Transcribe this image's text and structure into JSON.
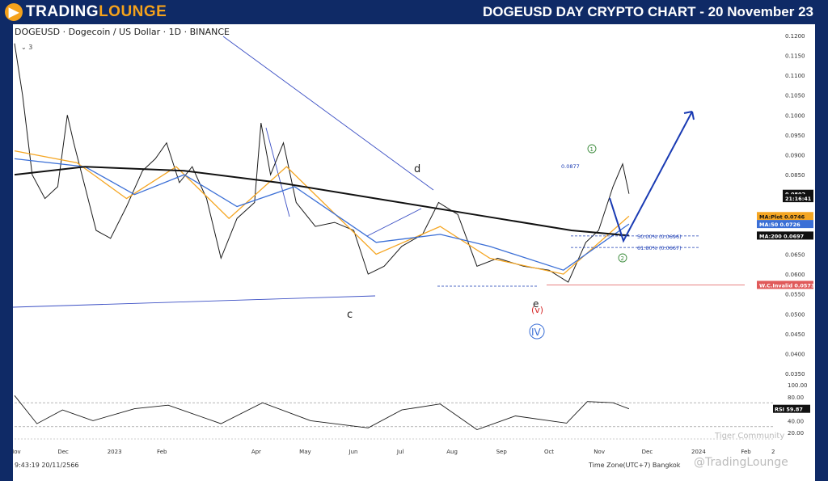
{
  "header": {
    "logo_part1": "TRADING",
    "logo_part2": "LOUNGE",
    "title": "DOGEUSD DAY CRYPTO CHART - 20 November 23"
  },
  "colors": {
    "header_bg": "#0f2a66",
    "brand_orange": "#f5a21b",
    "price": "#1b1b1b",
    "ma200": "#111111",
    "ma50": "#3b6fd6",
    "ma_plot": "#f5a623",
    "trendline": "#3b4fc4",
    "wave_arrow": "#1a3bb3",
    "invalidation": "#e05a5a",
    "wave_green": "#3a8a3a",
    "wave_red": "#d62b2b"
  },
  "chart_data": {
    "type": "line",
    "title": "DOGEUSD · Dogecoin / US Dollar · 1D · BINANCE",
    "indicator_count": "3",
    "xlabel": "",
    "ylabel": "",
    "x_ticks": [
      "Nov",
      "Dec",
      "2023",
      "Feb",
      "Apr",
      "May",
      "Jun",
      "Jul",
      "Aug",
      "Sep",
      "Oct",
      "Nov",
      "Dec",
      "2024",
      "Feb",
      "2"
    ],
    "y_ticks": [
      "0.1200",
      "0.1150",
      "0.1100",
      "0.1050",
      "0.1000",
      "0.0950",
      "0.0900",
      "0.0850",
      "0.0800",
      "0.0750",
      "0.0700",
      "0.0650",
      "0.0600",
      "0.0550",
      "0.0500",
      "0.0450",
      "0.0400",
      "0.0350"
    ],
    "ylim": [
      0.033,
      0.122
    ],
    "price_series": [
      {
        "d": "2022-11-01",
        "v": 0.118
      },
      {
        "d": "2022-11-06",
        "v": 0.105
      },
      {
        "d": "2022-11-12",
        "v": 0.085
      },
      {
        "d": "2022-11-20",
        "v": 0.079
      },
      {
        "d": "2022-11-28",
        "v": 0.082
      },
      {
        "d": "2022-12-04",
        "v": 0.1
      },
      {
        "d": "2022-12-08",
        "v": 0.093
      },
      {
        "d": "2022-12-15",
        "v": 0.082
      },
      {
        "d": "2022-12-22",
        "v": 0.071
      },
      {
        "d": "2022-12-31",
        "v": 0.069
      },
      {
        "d": "2023-01-10",
        "v": 0.077
      },
      {
        "d": "2023-01-20",
        "v": 0.086
      },
      {
        "d": "2023-01-28",
        "v": 0.089
      },
      {
        "d": "2023-02-04",
        "v": 0.093
      },
      {
        "d": "2023-02-12",
        "v": 0.083
      },
      {
        "d": "2023-02-20",
        "v": 0.087
      },
      {
        "d": "2023-03-01",
        "v": 0.079
      },
      {
        "d": "2023-03-10",
        "v": 0.064
      },
      {
        "d": "2023-03-20",
        "v": 0.074
      },
      {
        "d": "2023-03-31",
        "v": 0.078
      },
      {
        "d": "2023-04-04",
        "v": 0.098
      },
      {
        "d": "2023-04-10",
        "v": 0.085
      },
      {
        "d": "2023-04-18",
        "v": 0.093
      },
      {
        "d": "2023-04-26",
        "v": 0.078
      },
      {
        "d": "2023-05-08",
        "v": 0.072
      },
      {
        "d": "2023-05-20",
        "v": 0.073
      },
      {
        "d": "2023-06-01",
        "v": 0.071
      },
      {
        "d": "2023-06-10",
        "v": 0.06
      },
      {
        "d": "2023-06-20",
        "v": 0.062
      },
      {
        "d": "2023-07-01",
        "v": 0.067
      },
      {
        "d": "2023-07-14",
        "v": 0.07
      },
      {
        "d": "2023-07-24",
        "v": 0.078
      },
      {
        "d": "2023-08-05",
        "v": 0.075
      },
      {
        "d": "2023-08-17",
        "v": 0.062
      },
      {
        "d": "2023-08-30",
        "v": 0.064
      },
      {
        "d": "2023-09-15",
        "v": 0.062
      },
      {
        "d": "2023-10-01",
        "v": 0.061
      },
      {
        "d": "2023-10-13",
        "v": 0.058
      },
      {
        "d": "2023-10-24",
        "v": 0.068
      },
      {
        "d": "2023-11-01",
        "v": 0.071
      },
      {
        "d": "2023-11-10",
        "v": 0.082
      },
      {
        "d": "2023-11-16",
        "v": 0.0877
      },
      {
        "d": "2023-11-20",
        "v": 0.0802
      }
    ],
    "ma200_series": [
      {
        "d": "2022-11-01",
        "v": 0.085
      },
      {
        "d": "2022-12-15",
        "v": 0.087
      },
      {
        "d": "2023-02-15",
        "v": 0.086
      },
      {
        "d": "2023-04-15",
        "v": 0.083
      },
      {
        "d": "2023-06-15",
        "v": 0.079
      },
      {
        "d": "2023-08-15",
        "v": 0.075
      },
      {
        "d": "2023-10-15",
        "v": 0.071
      },
      {
        "d": "2023-11-20",
        "v": 0.0697
      }
    ],
    "ma50_series": [
      {
        "d": "2022-11-01",
        "v": 0.089
      },
      {
        "d": "2022-12-15",
        "v": 0.087
      },
      {
        "d": "2023-01-15",
        "v": 0.08
      },
      {
        "d": "2023-02-15",
        "v": 0.085
      },
      {
        "d": "2023-03-20",
        "v": 0.077
      },
      {
        "d": "2023-04-25",
        "v": 0.082
      },
      {
        "d": "2023-06-15",
        "v": 0.068
      },
      {
        "d": "2023-07-25",
        "v": 0.07
      },
      {
        "d": "2023-08-25",
        "v": 0.067
      },
      {
        "d": "2023-10-10",
        "v": 0.061
      },
      {
        "d": "2023-11-20",
        "v": 0.0726
      }
    ],
    "maplot_series": [
      {
        "d": "2022-11-01",
        "v": 0.091
      },
      {
        "d": "2022-12-10",
        "v": 0.088
      },
      {
        "d": "2023-01-10",
        "v": 0.079
      },
      {
        "d": "2023-02-10",
        "v": 0.087
      },
      {
        "d": "2023-03-15",
        "v": 0.074
      },
      {
        "d": "2023-04-20",
        "v": 0.087
      },
      {
        "d": "2023-06-15",
        "v": 0.065
      },
      {
        "d": "2023-07-25",
        "v": 0.072
      },
      {
        "d": "2023-08-25",
        "v": 0.064
      },
      {
        "d": "2023-10-10",
        "v": 0.06
      },
      {
        "d": "2023-11-20",
        "v": 0.0746
      }
    ],
    "price_labels": [
      {
        "label": "",
        "value": "0.0802",
        "color": "#111111",
        "text_color": "#ffffff",
        "y": 0.0802
      },
      {
        "label": "",
        "value": "21:16:41",
        "color": "#111111",
        "text_color": "#ffffff",
        "y": 0.0791
      },
      {
        "label": "MA:Plot",
        "value": "0.0746",
        "color": "#f5a623",
        "text_color": "#111111",
        "y": 0.0746
      },
      {
        "label": "MA:50",
        "value": "0.0726",
        "color": "#3b6fd6",
        "text_color": "#ffffff",
        "y": 0.0726
      },
      {
        "label": "MA:200",
        "value": "0.0697",
        "color": "#111111",
        "text_color": "#ffffff",
        "y": 0.0697
      },
      {
        "label": "W.C.Invalid",
        "value": "0.0573",
        "color": "#e05a5a",
        "text_color": "#ffffff",
        "y": 0.0573
      }
    ],
    "fib_levels": [
      {
        "label": "50.00% (0.0696)",
        "value": 0.0696
      },
      {
        "label": "61.80% (0.0667)",
        "value": 0.0667
      }
    ],
    "annotations": {
      "high_label": "0.0877",
      "wave_d": "d",
      "wave_c": "c",
      "wave_e": "e",
      "wave_v": "(v)",
      "wave_IV": "IV",
      "wave_1": "1",
      "wave_2": "2",
      "invalidation_label": "W.C.Invalid"
    },
    "rsi": {
      "label": "RSI",
      "value": "59.87",
      "y_ticks": [
        "100.00",
        "80.00",
        "60.00",
        "40.00",
        "20.00"
      ],
      "series": [
        {
          "d": "2022-11-01",
          "v": 82
        },
        {
          "d": "2022-11-15",
          "v": 35
        },
        {
          "d": "2022-12-01",
          "v": 58
        },
        {
          "d": "2022-12-20",
          "v": 40
        },
        {
          "d": "2023-01-15",
          "v": 60
        },
        {
          "d": "2023-02-05",
          "v": 66
        },
        {
          "d": "2023-03-10",
          "v": 35
        },
        {
          "d": "2023-04-05",
          "v": 70
        },
        {
          "d": "2023-05-05",
          "v": 40
        },
        {
          "d": "2023-06-10",
          "v": 28
        },
        {
          "d": "2023-07-01",
          "v": 58
        },
        {
          "d": "2023-07-25",
          "v": 68
        },
        {
          "d": "2023-08-17",
          "v": 25
        },
        {
          "d": "2023-09-10",
          "v": 48
        },
        {
          "d": "2023-10-12",
          "v": 36
        },
        {
          "d": "2023-10-25",
          "v": 72
        },
        {
          "d": "2023-11-10",
          "v": 70
        },
        {
          "d": "2023-11-20",
          "v": 59.87
        }
      ]
    }
  },
  "footer": {
    "timestamp": "9:43:19 20/11/2566",
    "timezone": "Time Zone(UTC+7) Bangkok",
    "watermark1": "Tiger Community",
    "watermark2": "@TradingLounge"
  }
}
